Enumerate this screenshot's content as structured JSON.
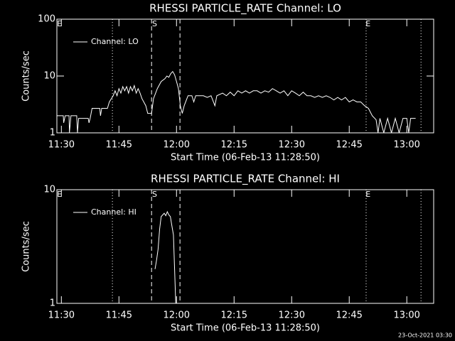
{
  "chart_data": [
    {
      "type": "line",
      "title": "RHESSI PARTICLE_RATE Channel: LO",
      "xlabel": "Start Time (06-Feb-13 11:28:50)",
      "ylabel": "Counts/sec",
      "log_y": true,
      "ylim": [
        1,
        100
      ],
      "yticks": [
        1,
        10,
        100
      ],
      "xlim": [
        688.83,
        787
      ],
      "xticks": [
        {
          "value": 690,
          "label": "11:30"
        },
        {
          "value": 705,
          "label": "11:45"
        },
        {
          "value": 720,
          "label": "12:00"
        },
        {
          "value": 735,
          "label": "12:15"
        },
        {
          "value": 750,
          "label": "12:30"
        },
        {
          "value": 765,
          "label": "12:45"
        },
        {
          "value": 780,
          "label": "13:00"
        }
      ],
      "legend": "upper left",
      "lines": [
        {
          "x": 703.3,
          "dash": "dotted"
        },
        {
          "x": 713.5,
          "dash": "dashed"
        },
        {
          "x": 720.9,
          "dash": "dashed"
        },
        {
          "x": 769.4,
          "dash": "dotted"
        },
        {
          "x": 783.7,
          "dash": "dotted"
        }
      ],
      "flags": [
        {
          "x": 689.5,
          "label": "E"
        },
        {
          "x": 714.3,
          "label": "S"
        },
        {
          "x": 769.9,
          "label": "E"
        }
      ],
      "series": [
        {
          "name": "Channel: LO",
          "color": "#ffffff",
          "x": [
            688.83,
            690.5,
            690.6,
            691,
            692,
            692.1,
            692.5,
            694,
            694.2,
            694.5,
            697,
            697.2,
            697.5,
            698,
            700,
            700.2,
            700.5,
            702,
            702.5,
            703.5,
            704,
            704.5,
            705,
            705.5,
            706,
            706.5,
            707,
            707.5,
            708,
            708.5,
            709,
            709.5,
            710,
            710.5,
            711,
            712,
            712.5,
            713.5,
            714,
            715,
            716,
            717,
            717.5,
            718,
            718.5,
            719,
            719.5,
            720,
            720.5,
            721,
            721.5,
            722,
            723,
            724,
            724.5,
            725,
            727,
            728,
            729,
            730,
            730.5,
            732,
            733,
            734,
            735,
            736,
            737,
            738,
            739,
            740,
            741,
            742,
            743,
            744,
            745,
            746,
            747,
            748,
            749,
            750,
            751,
            752,
            753,
            754,
            755,
            756,
            757,
            758,
            759,
            760,
            761,
            762,
            763,
            764,
            765,
            766,
            767,
            768,
            769,
            770,
            771,
            772,
            772.5,
            773,
            774,
            775,
            776,
            777,
            778,
            779,
            780,
            780.5,
            781,
            782.3
          ],
          "values": [
            2,
            2,
            1.5,
            2,
            2,
            1,
            2,
            2,
            1,
            1.8,
            1.8,
            1.5,
            1.8,
            2.7,
            2.7,
            2,
            2.7,
            2.7,
            3.5,
            4.5,
            5.5,
            4.5,
            6,
            5,
            6.5,
            5.5,
            6.5,
            5,
            6.5,
            5.5,
            6.8,
            5,
            6,
            5,
            4,
            3,
            2.2,
            2.2,
            4,
            6,
            8,
            9,
            10,
            9.5,
            11,
            12,
            10.5,
            8,
            6,
            3,
            2.2,
            3,
            4.5,
            4.5,
            3.5,
            4.5,
            4.5,
            4.2,
            4.5,
            3,
            4.5,
            5,
            4.5,
            5.2,
            4.5,
            5.5,
            5,
            5.5,
            5,
            5.5,
            5.5,
            5,
            5.5,
            5.2,
            6,
            5.5,
            5,
            5.5,
            4.5,
            5.5,
            5,
            4.5,
            5.2,
            4.5,
            4.5,
            4.2,
            4.5,
            4.2,
            4.5,
            4.2,
            3.8,
            4.2,
            3.8,
            4.2,
            3.5,
            3.8,
            3.5,
            3.5,
            3,
            2.7,
            2,
            1.7,
            1,
            1.8,
            1,
            1.8,
            1,
            1.8,
            1,
            1.8,
            1.8,
            1,
            1.8,
            1.8
          ]
        }
      ]
    },
    {
      "type": "line",
      "title": "RHESSI PARTICLE_RATE Channel: HI",
      "xlabel": "Start Time (06-Feb-13 11:28:50)",
      "ylabel": "Counts/sec",
      "log_y": true,
      "ylim": [
        1,
        10
      ],
      "yticks": [
        1,
        10
      ],
      "xlim": [
        688.83,
        787
      ],
      "xticks": [
        {
          "value": 690,
          "label": "11:30"
        },
        {
          "value": 705,
          "label": "11:45"
        },
        {
          "value": 720,
          "label": "12:00"
        },
        {
          "value": 735,
          "label": "12:15"
        },
        {
          "value": 750,
          "label": "12:30"
        },
        {
          "value": 765,
          "label": "12:45"
        },
        {
          "value": 780,
          "label": "13:00"
        }
      ],
      "legend": "upper left",
      "lines": [
        {
          "x": 703.3,
          "dash": "dotted"
        },
        {
          "x": 713.5,
          "dash": "dashed"
        },
        {
          "x": 720.9,
          "dash": "dashed"
        },
        {
          "x": 769.4,
          "dash": "dotted"
        },
        {
          "x": 783.7,
          "dash": "dotted"
        }
      ],
      "flags": [
        {
          "x": 689.5,
          "label": "E"
        },
        {
          "x": 714.3,
          "label": "S"
        },
        {
          "x": 769.9,
          "label": "E"
        }
      ],
      "series": [
        {
          "name": "Channel: HI",
          "color": "#ffffff",
          "x": [
            714.4,
            714.8,
            715.2,
            715.6,
            716,
            716.4,
            716.8,
            717.2,
            717.6,
            718,
            718.4,
            718.8,
            719.2,
            719.5,
            719.8
          ],
          "values": [
            2,
            2.4,
            3,
            4.5,
            5.8,
            6,
            6.2,
            5.9,
            6.4,
            6,
            5.8,
            4.8,
            4,
            2,
            1
          ]
        }
      ]
    }
  ],
  "footer": "23-Oct-2021 03:30"
}
